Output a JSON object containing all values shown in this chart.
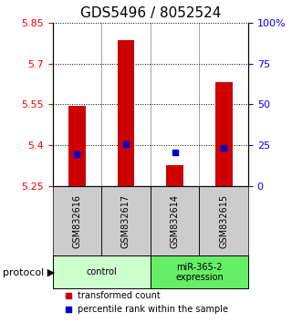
{
  "title": "GDS5496 / 8052524",
  "samples": [
    "GSM832616",
    "GSM832617",
    "GSM832614",
    "GSM832615"
  ],
  "groups": [
    {
      "label": "control",
      "samples": [
        0,
        1
      ],
      "color": "#ccffcc"
    },
    {
      "label": "miR-365-2\nexpression",
      "samples": [
        2,
        3
      ],
      "color": "#66ee66"
    }
  ],
  "bar_values": [
    5.545,
    5.785,
    5.325,
    5.63
  ],
  "percentile_values": [
    0.195,
    0.255,
    0.205,
    0.235
  ],
  "y_min": 5.25,
  "y_max": 5.85,
  "y_ticks_left": [
    5.25,
    5.4,
    5.55,
    5.7,
    5.85
  ],
  "y_ticks_right": [
    0,
    25,
    50,
    75,
    100
  ],
  "y_ticks_right_labels": [
    "0",
    "25",
    "50",
    "75",
    "100%"
  ],
  "bar_color": "#cc0000",
  "dot_color": "#0000cc",
  "bar_width": 0.35,
  "bar_bottom": 5.25,
  "legend_red_label": "transformed count",
  "legend_blue_label": "percentile rank within the sample",
  "protocol_label": "protocol",
  "title_fontsize": 11,
  "axis_fontsize": 8,
  "tick_fontsize": 8,
  "sample_label_fontsize": 7
}
